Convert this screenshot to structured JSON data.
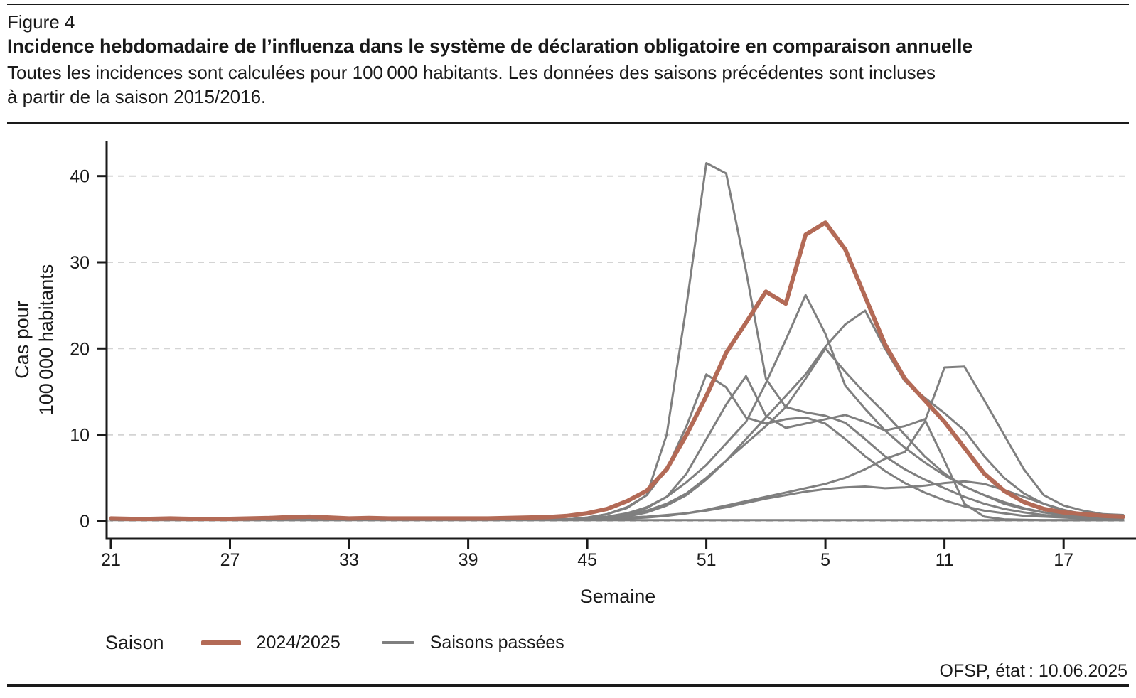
{
  "header": {
    "figure_label": "Figure 4",
    "title": "Incidence hebdomadaire de l’influenza dans le système de déclaration obligatoire en comparaison annuelle",
    "subtitle_line1": "Toutes les incidences sont calculées pour 100 000 habitants. Les données des saisons précédentes sont incluses",
    "subtitle_line2": "à partir de la saison 2015/2016."
  },
  "legend": {
    "title": "Saison",
    "current_label": "2024/2025",
    "past_label": "Saisons passées"
  },
  "source": "OFSP, état : 10.06.2025",
  "colors": {
    "current": "#b36a56",
    "past": "#7f7f7f",
    "grid": "#d4d4d4",
    "axis": "#1a1a1a"
  },
  "chart_data": {
    "type": "line",
    "title": "Incidence hebdomadaire de l’influenza dans le système de déclaration obligatoire en comparaison annuelle",
    "xlabel": "Semaine",
    "ylabel_line1": "Cas pour",
    "ylabel_line2": "100 000 habitants",
    "ylim": [
      0,
      42
    ],
    "y_ticks": [
      0,
      10,
      20,
      30,
      40
    ],
    "grid": "horizontal-dashed",
    "legend_position": "bottom-left",
    "weeks": [
      21,
      22,
      23,
      24,
      25,
      26,
      27,
      28,
      29,
      30,
      31,
      32,
      33,
      34,
      35,
      36,
      37,
      38,
      39,
      40,
      41,
      42,
      43,
      44,
      45,
      46,
      47,
      48,
      49,
      50,
      51,
      52,
      1,
      2,
      3,
      4,
      5,
      6,
      7,
      8,
      9,
      10,
      11,
      12,
      13,
      14,
      15,
      16,
      17,
      18,
      19,
      20
    ],
    "x_ticks": [
      {
        "index": 0,
        "label": "21"
      },
      {
        "index": 6,
        "label": "27"
      },
      {
        "index": 12,
        "label": "33"
      },
      {
        "index": 18,
        "label": "39"
      },
      {
        "index": 24,
        "label": "45"
      },
      {
        "index": 30,
        "label": "51"
      },
      {
        "index": 36,
        "label": "5"
      },
      {
        "index": 42,
        "label": "11"
      },
      {
        "index": 48,
        "label": "17"
      }
    ],
    "current_season": {
      "name": "2024/2025",
      "color": "#b36a56",
      "values": [
        0.3,
        0.25,
        0.25,
        0.3,
        0.25,
        0.25,
        0.25,
        0.3,
        0.35,
        0.45,
        0.5,
        0.4,
        0.3,
        0.35,
        0.3,
        0.3,
        0.3,
        0.3,
        0.3,
        0.3,
        0.35,
        0.4,
        0.45,
        0.6,
        0.9,
        1.4,
        2.3,
        3.5,
        6,
        10,
        14.5,
        19.5,
        23,
        26.6,
        25.2,
        33.2,
        34.6,
        31.5,
        26,
        20.5,
        16.5,
        14,
        11.5,
        8.5,
        5.5,
        3.5,
        2.2,
        1.4,
        1.0,
        0.8,
        0.6,
        0.5
      ]
    },
    "past_seasons": {
      "label": "Saisons passées",
      "color": "#7f7f7f",
      "note": "saisons depuis 2015/2016",
      "series": [
        [
          0.15,
          0.15,
          0.15,
          0.15,
          0.15,
          0.15,
          0.15,
          0.15,
          0.15,
          0.15,
          0.15,
          0.15,
          0.15,
          0.15,
          0.15,
          0.15,
          0.15,
          0.15,
          0.15,
          0.15,
          0.15,
          0.15,
          0.15,
          0.2,
          0.4,
          0.8,
          1.5,
          3,
          10,
          25,
          41.5,
          40.3,
          29,
          16.5,
          13.2,
          12.6,
          12.2,
          11.4,
          9.5,
          7.5,
          6,
          4.8,
          3.8,
          2.8,
          2,
          1.4,
          1,
          0.7,
          0.5,
          0.4,
          0.35,
          0.3
        ],
        [
          0.2,
          0.2,
          0.2,
          0.2,
          0.2,
          0.2,
          0.2,
          0.2,
          0.2,
          0.2,
          0.2,
          0.2,
          0.2,
          0.2,
          0.2,
          0.2,
          0.2,
          0.2,
          0.2,
          0.2,
          0.2,
          0.2,
          0.2,
          0.2,
          0.3,
          0.5,
          0.9,
          1.6,
          2.8,
          4.5,
          6.5,
          9,
          11.5,
          16,
          21,
          26.2,
          21.7,
          15.7,
          13,
          10.5,
          8.5,
          6.8,
          5.3,
          4,
          3,
          2,
          1.4,
          1,
          0.7,
          0.5,
          0.4,
          0.3
        ],
        [
          0.15,
          0.15,
          0.15,
          0.15,
          0.15,
          0.15,
          0.15,
          0.15,
          0.15,
          0.15,
          0.15,
          0.15,
          0.15,
          0.15,
          0.15,
          0.15,
          0.15,
          0.15,
          0.15,
          0.15,
          0.15,
          0.15,
          0.15,
          0.15,
          0.25,
          0.4,
          0.7,
          1.2,
          2,
          3.2,
          5,
          7,
          9.5,
          12,
          14.5,
          17,
          20.2,
          22.8,
          24.4,
          20,
          16.2,
          14.3,
          12.5,
          10.5,
          7.5,
          5,
          3.2,
          2,
          1.2,
          0.8,
          0.5,
          0.4
        ],
        [
          0.15,
          0.15,
          0.15,
          0.15,
          0.15,
          0.15,
          0.15,
          0.15,
          0.15,
          0.15,
          0.15,
          0.15,
          0.15,
          0.15,
          0.15,
          0.15,
          0.15,
          0.15,
          0.15,
          0.15,
          0.15,
          0.15,
          0.15,
          0.15,
          0.2,
          0.3,
          0.5,
          1,
          1.8,
          3,
          4.8,
          7,
          9,
          11,
          13.2,
          16.5,
          20,
          17.3,
          14.8,
          12.5,
          10,
          7.5,
          5.5,
          4,
          3,
          2.2,
          1.5,
          1,
          0.7,
          0.5,
          0.4,
          0.3
        ],
        [
          0.2,
          0.2,
          0.2,
          0.2,
          0.2,
          0.2,
          0.2,
          0.2,
          0.2,
          0.2,
          0.4,
          0.3,
          0.2,
          0.2,
          0.2,
          0.2,
          0.2,
          0.2,
          0.2,
          0.2,
          0.2,
          0.2,
          0.2,
          0.2,
          0.4,
          0.8,
          1.6,
          3,
          6,
          11,
          17,
          15.5,
          12,
          11.3,
          11.8,
          12,
          11.3,
          9.5,
          7.5,
          5.8,
          4.4,
          3.3,
          2.4,
          1.7,
          1.2,
          0.9,
          0.6,
          0.5,
          0.4,
          0.3,
          0.25,
          0.25
        ],
        [
          0.15,
          0.15,
          0.15,
          0.15,
          0.15,
          0.15,
          0.15,
          0.15,
          0.15,
          0.15,
          0.15,
          0.15,
          0.15,
          0.15,
          0.15,
          0.15,
          0.15,
          0.15,
          0.15,
          0.15,
          0.15,
          0.15,
          0.15,
          0.15,
          0.2,
          0.4,
          0.8,
          1.5,
          2.8,
          5.5,
          9.5,
          13.5,
          16.8,
          12.2,
          10.8,
          11.3,
          11.8,
          12.3,
          11.5,
          10.5,
          11,
          11.8,
          7,
          2,
          0.5,
          0.2,
          0.15,
          0.1,
          0.1,
          0.1,
          0.1,
          0.1
        ],
        [
          0.15,
          0.15,
          0.15,
          0.15,
          0.15,
          0.15,
          0.15,
          0.15,
          0.15,
          0.15,
          0.15,
          0.15,
          0.15,
          0.15,
          0.15,
          0.15,
          0.15,
          0.15,
          0.15,
          0.15,
          0.15,
          0.15,
          0.15,
          0.15,
          0.2,
          0.25,
          0.3,
          0.4,
          0.6,
          0.9,
          1.3,
          1.8,
          2.3,
          2.8,
          3.3,
          3.8,
          4.3,
          5,
          6,
          7.2,
          8,
          11.5,
          17.8,
          17.9,
          14,
          10,
          6,
          3,
          1.8,
          1.2,
          0.8,
          0.7
        ],
        [
          0.1,
          0.1,
          0.1,
          0.1,
          0.1,
          0.1,
          0.1,
          0.1,
          0.1,
          0.1,
          0.1,
          0.1,
          0.1,
          0.1,
          0.1,
          0.1,
          0.1,
          0.1,
          0.1,
          0.1,
          0.1,
          0.1,
          0.1,
          0.1,
          0.1,
          0.1,
          0.1,
          0.1,
          0.1,
          0.1,
          0.1,
          0.1,
          0.1,
          0.1,
          0.1,
          0.1,
          0.1,
          0.1,
          0.1,
          0.1,
          0.1,
          0.1,
          0.1,
          0.1,
          0.1,
          0.1,
          0.1,
          0.1,
          0.1,
          0.1,
          0.1,
          0.1
        ],
        [
          0.2,
          0.2,
          0.2,
          0.2,
          0.2,
          0.2,
          0.2,
          0.2,
          0.2,
          0.2,
          0.2,
          0.2,
          0.2,
          0.2,
          0.2,
          0.2,
          0.2,
          0.2,
          0.2,
          0.2,
          0.2,
          0.2,
          0.2,
          0.2,
          0.25,
          0.3,
          0.4,
          0.5,
          0.7,
          0.9,
          1.2,
          1.6,
          2.1,
          2.6,
          3,
          3.4,
          3.7,
          3.9,
          4,
          3.8,
          3.9,
          4.1,
          4.4,
          4.6,
          4.3,
          3.6,
          2.8,
          2,
          1.3,
          0.8,
          0.5,
          0.35
        ]
      ]
    }
  }
}
